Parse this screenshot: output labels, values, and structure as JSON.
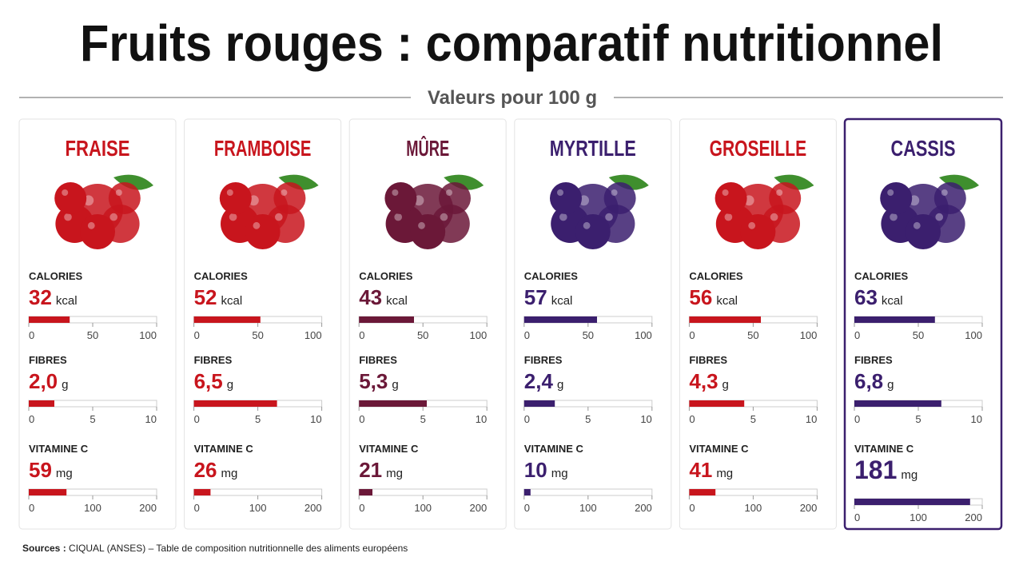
{
  "header": {
    "title": "Fruits rouges : comparatif nutritionnel",
    "subtitle": "Valeurs pour 100 g"
  },
  "metrics": [
    {
      "label": "CALORIES",
      "unit": "kcal",
      "xlim": [
        0,
        100
      ],
      "xticks": [
        0,
        50,
        100
      ]
    },
    {
      "label": "FIBRES",
      "unit": "g",
      "xlim": [
        0,
        10
      ],
      "xticks": [
        0,
        5,
        10
      ]
    },
    {
      "label": "VITAMINE C",
      "unit": "mg",
      "xlim": [
        0,
        200
      ],
      "xticks": [
        0,
        100,
        200
      ]
    }
  ],
  "fruits": [
    {
      "name": "FRAISE",
      "color": "#c8151d",
      "values": [
        32,
        2.0,
        59
      ],
      "value_labels": [
        "32",
        "2,0",
        "59"
      ]
    },
    {
      "name": "FRAMBOISE",
      "color": "#c8151d",
      "values": [
        52,
        6.5,
        26
      ],
      "value_labels": [
        "52",
        "6,5",
        "26"
      ]
    },
    {
      "name": "MÛRE",
      "color": "#6b1838",
      "values": [
        43,
        5.3,
        21
      ],
      "value_labels": [
        "43",
        "5,3",
        "21"
      ]
    },
    {
      "name": "MYRTILLE",
      "color": "#3b1f6e",
      "values": [
        57,
        2.4,
        10
      ],
      "value_labels": [
        "57",
        "2,4",
        "10"
      ]
    },
    {
      "name": "GROSEILLE",
      "color": "#c8151d",
      "values": [
        56,
        4.3,
        41
      ],
      "value_labels": [
        "56",
        "4,3",
        "41"
      ]
    },
    {
      "name": "CASSIS",
      "color": "#3b1f6e",
      "values": [
        63,
        6.8,
        181
      ],
      "value_labels": [
        "63",
        "6,8",
        "181"
      ],
      "highlighted": true
    }
  ],
  "sources": {
    "label": "Sources :",
    "text": "CIQUAL (ANSES) – Table de composition nutritionnelle des aliments européens"
  }
}
